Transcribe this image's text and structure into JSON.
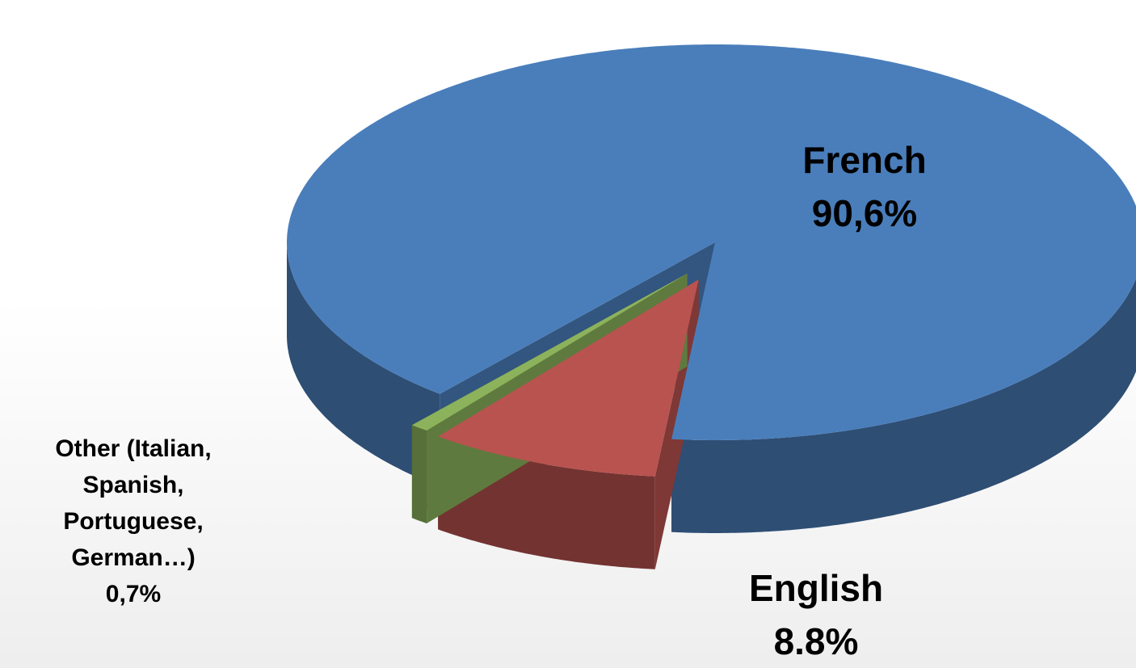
{
  "chart_data": {
    "type": "pie3d",
    "categories": [
      "French",
      "English",
      "Other (Italian, Spanish, Portuguese, German…)"
    ],
    "values": [
      90.6,
      8.8,
      0.7
    ],
    "value_labels": [
      "90,6%",
      "8.8%",
      "0,7%"
    ],
    "colors": [
      "#4a7ebb",
      "#b9534f",
      "#8cb35c"
    ]
  }
}
